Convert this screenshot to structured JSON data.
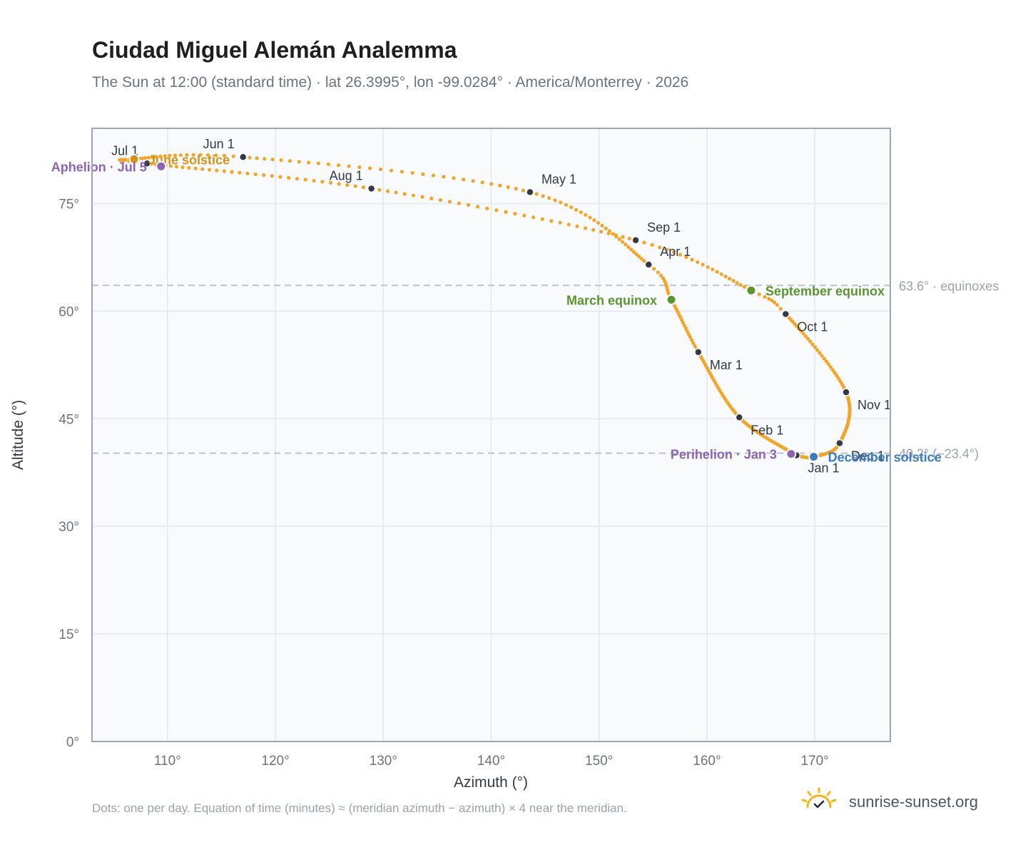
{
  "title": "Ciudad Miguel Alemán Analemma",
  "subtitle": "The Sun at 12:00 (standard time) · lat 26.3995°, lon -99.0284° · America/Monterrey · 2026",
  "footnote": "Dots: one per day. Equation of time (minutes) ≈ (meridian azimuth − azimuth) × 4 near the meridian.",
  "brand": {
    "name": "sunrise-sunset.org",
    "logo_icon": "sun-logo-icon"
  },
  "colors": {
    "curve": "#f2a52a",
    "month_marker": "#333a44",
    "equinox": "#5a9532",
    "june_solstice": "#d4921a",
    "december_solstice": "#3c7ac0",
    "perihelion_aphelion": "#8e62b4",
    "reference_line": "#b8c4d0",
    "plot_background": "#f8fafc",
    "grid": "#e2e8ef"
  },
  "chart_data": {
    "type": "scatter",
    "xlabel": "Azimuth (°)",
    "ylabel": "Altitude (°)",
    "xlim": [
      103,
      177
    ],
    "ylim": [
      0,
      85.5
    ],
    "xticks": [
      110,
      120,
      130,
      140,
      150,
      160,
      170
    ],
    "xtick_labels": [
      "110°",
      "120°",
      "130°",
      "140°",
      "150°",
      "160°",
      "170°"
    ],
    "yticks": [
      0,
      15,
      30,
      45,
      60,
      75
    ],
    "ytick_labels": [
      "0°",
      "15°",
      "30°",
      "45°",
      "60°",
      "75°"
    ],
    "grid": true,
    "analemma_keypoints": [
      {
        "doy": 1,
        "az": 168.3,
        "alt": 39.9
      },
      {
        "doy": 32,
        "az": 163.0,
        "alt": 45.2
      },
      {
        "doy": 60,
        "az": 159.2,
        "alt": 54.3
      },
      {
        "doy": 79,
        "az": 156.7,
        "alt": 61.6
      },
      {
        "doy": 91,
        "az": 154.6,
        "alt": 66.5
      },
      {
        "doy": 121,
        "az": 143.6,
        "alt": 76.6
      },
      {
        "doy": 152,
        "az": 117.0,
        "alt": 81.5
      },
      {
        "doy": 172,
        "az": 106.9,
        "alt": 81.2
      },
      {
        "doy": 182,
        "az": 108.1,
        "alt": 80.6
      },
      {
        "doy": 213,
        "az": 128.9,
        "alt": 77.1
      },
      {
        "doy": 244,
        "az": 153.4,
        "alt": 69.9
      },
      {
        "doy": 266,
        "az": 164.1,
        "alt": 62.9
      },
      {
        "doy": 274,
        "az": 167.3,
        "alt": 59.6
      },
      {
        "doy": 305,
        "az": 172.9,
        "alt": 48.7
      },
      {
        "doy": 335,
        "az": 172.3,
        "alt": 41.6
      },
      {
        "doy": 355,
        "az": 169.9,
        "alt": 39.7
      },
      {
        "doy": 365,
        "az": 168.4,
        "alt": 39.85
      }
    ],
    "month_markers": [
      {
        "label": "Jan 1",
        "az": 168.3,
        "alt": 39.9,
        "pos": "below-right"
      },
      {
        "label": "Feb 1",
        "az": 163.0,
        "alt": 45.2,
        "pos": "below-right"
      },
      {
        "label": "Mar 1",
        "az": 159.2,
        "alt": 54.3,
        "pos": "below-right"
      },
      {
        "label": "Apr 1",
        "az": 154.6,
        "alt": 66.5,
        "pos": "above-right"
      },
      {
        "label": "May 1",
        "az": 143.6,
        "alt": 76.6,
        "pos": "above-right"
      },
      {
        "label": "Jun 1",
        "az": 117.0,
        "alt": 81.5,
        "pos": "above-left"
      },
      {
        "label": "Jul 1",
        "az": 108.1,
        "alt": 80.6,
        "pos": "above-left"
      },
      {
        "label": "Aug 1",
        "az": 128.9,
        "alt": 77.1,
        "pos": "above-left"
      },
      {
        "label": "Sep 1",
        "az": 153.4,
        "alt": 69.9,
        "pos": "above-right"
      },
      {
        "label": "Oct 1",
        "az": 167.3,
        "alt": 59.6,
        "pos": "below-right"
      },
      {
        "label": "Nov 1",
        "az": 172.9,
        "alt": 48.7,
        "pos": "below-right"
      },
      {
        "label": "Dec 1",
        "az": 172.3,
        "alt": 41.6,
        "pos": "below-right"
      }
    ],
    "events": [
      {
        "label": "March equinox",
        "az": 156.7,
        "alt": 61.6,
        "color": "#5a9532",
        "pos": "left"
      },
      {
        "label": "September equinox",
        "az": 164.1,
        "alt": 62.9,
        "color": "#5a9532",
        "pos": "right"
      },
      {
        "label": "June solstice",
        "az": 106.9,
        "alt": 81.2,
        "color": "#d4921a",
        "pos": "right"
      },
      {
        "label": "December solstice",
        "az": 169.9,
        "alt": 39.7,
        "color": "#3c7ac0",
        "pos": "right"
      },
      {
        "label": "Perihelion · Jan 3",
        "az": 167.8,
        "alt": 40.1,
        "color": "#8e62b4",
        "pos": "left"
      },
      {
        "label": "Aphelion · Jul 5",
        "az": 109.4,
        "alt": 80.2,
        "color": "#8e62b4",
        "pos": "left"
      }
    ],
    "reference_lines": [
      {
        "alt": 63.6,
        "label": "63.6° · equinoxes"
      },
      {
        "alt": 40.2,
        "label": "40.2° (−23.4°)"
      }
    ]
  }
}
